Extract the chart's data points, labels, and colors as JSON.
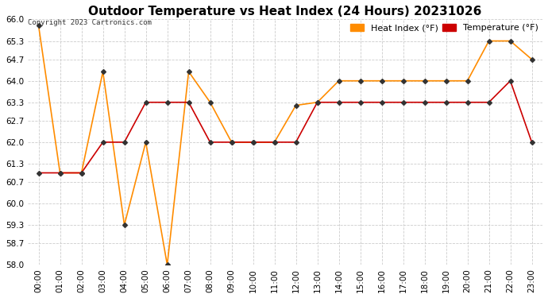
{
  "title": "Outdoor Temperature vs Heat Index (24 Hours) 20231026",
  "copyright": "Copyright 2023 Cartronics.com",
  "legend_heat": "Heat Index (°F)",
  "legend_temp": "Temperature (°F)",
  "x_labels": [
    "00:00",
    "01:00",
    "02:00",
    "03:00",
    "04:00",
    "05:00",
    "06:00",
    "07:00",
    "08:00",
    "09:00",
    "10:00",
    "11:00",
    "12:00",
    "13:00",
    "14:00",
    "15:00",
    "16:00",
    "17:00",
    "18:00",
    "19:00",
    "20:00",
    "21:00",
    "22:00",
    "23:00"
  ],
  "ylim": [
    58.0,
    66.0
  ],
  "yticks": [
    58.0,
    58.7,
    59.3,
    60.0,
    60.7,
    61.3,
    62.0,
    62.7,
    63.3,
    64.0,
    64.7,
    65.3,
    66.0
  ],
  "heat_index": [
    65.8,
    61.0,
    61.0,
    64.3,
    59.3,
    62.0,
    58.0,
    64.3,
    63.3,
    62.0,
    62.0,
    62.0,
    63.2,
    63.3,
    64.0,
    64.0,
    64.0,
    64.0,
    64.0,
    64.0,
    64.0,
    65.3,
    65.3,
    64.7
  ],
  "temperature": [
    61.0,
    61.0,
    61.0,
    62.0,
    62.0,
    63.3,
    63.3,
    63.3,
    62.0,
    62.0,
    62.0,
    62.0,
    62.0,
    63.3,
    63.3,
    63.3,
    63.3,
    63.3,
    63.3,
    63.3,
    63.3,
    63.3,
    64.0,
    62.0
  ],
  "heat_color": "#FF8C00",
  "temp_color": "#CC0000",
  "marker_color": "#333333",
  "bg_color": "#ffffff",
  "grid_color": "#cccccc",
  "title_fontsize": 11,
  "tick_fontsize": 7.5,
  "legend_fontsize": 8
}
